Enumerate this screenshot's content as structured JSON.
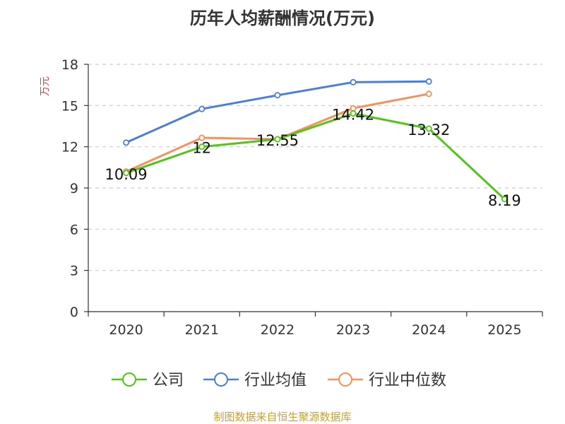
{
  "chart_data": {
    "type": "line",
    "title": "历年人均薪酬情况(万元)",
    "ylabel": "万元",
    "xlabel": "",
    "categories": [
      "2020",
      "2021",
      "2022",
      "2023",
      "2024",
      "2025"
    ],
    "ylim": [
      0,
      18
    ],
    "yticks": [
      0,
      3,
      6,
      9,
      12,
      15,
      18
    ],
    "grid": true,
    "legend_position": "bottom",
    "series": [
      {
        "name": "公司",
        "color": "#52c41a",
        "values": [
          10.09,
          12,
          12.55,
          14.42,
          13.32,
          8.19
        ],
        "data_labels": [
          "10.09",
          "12",
          "12.55",
          "14.42",
          "13.32",
          "8.19"
        ]
      },
      {
        "name": "行业均值",
        "color": "#4a7fd9",
        "values": [
          12.3,
          14.75,
          15.75,
          16.7,
          16.75,
          null
        ]
      },
      {
        "name": "行业中位数",
        "color": "#f3925c",
        "values": [
          10.2,
          12.65,
          12.55,
          14.8,
          15.85,
          null
        ]
      }
    ]
  },
  "footer": {
    "source": "制图数据来自恒生聚源数据库"
  },
  "colors": {
    "axis": "#333333",
    "grid": "#cccccc",
    "ylabel": "#e63946",
    "footer": "#c8a032",
    "title": "#333333"
  }
}
